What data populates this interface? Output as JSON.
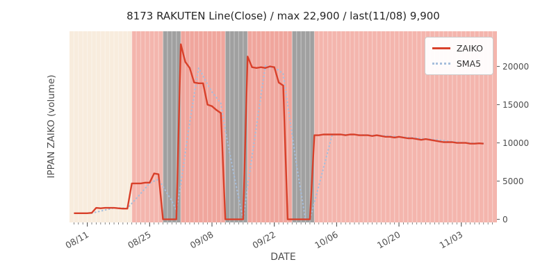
{
  "chart_data": {
    "type": "line",
    "title": "8173 RAKUTEN Line(Close) / max 22,900 / last(11/08) 9,900",
    "xlabel": "DATE",
    "ylabel": "IPPAN ZAIKO (volume)",
    "x_tick_labels": [
      "08/11",
      "08/25",
      "09/08",
      "09/22",
      "10/06",
      "10/20",
      "11/03"
    ],
    "y_ticks": [
      0,
      5000,
      10000,
      15000,
      20000
    ],
    "xlim": [
      "08/07",
      "11/11"
    ],
    "ylim": [
      -400,
      24600
    ],
    "legend_position": "upper right",
    "max_value": 22900,
    "last": {
      "date": "11/08",
      "value": 9900
    },
    "series": [
      {
        "name": "ZAIKO",
        "style": "solid",
        "color": "#d8402a",
        "points": [
          [
            "08/08",
            800
          ],
          [
            "08/09",
            800
          ],
          [
            "08/10",
            800
          ],
          [
            "08/11",
            800
          ],
          [
            "08/12",
            850
          ],
          [
            "08/13",
            1500
          ],
          [
            "08/14",
            1450
          ],
          [
            "08/15",
            1500
          ],
          [
            "08/16",
            1500
          ],
          [
            "08/17",
            1500
          ],
          [
            "08/18",
            1450
          ],
          [
            "08/19",
            1400
          ],
          [
            "08/20",
            1400
          ],
          [
            "08/21",
            4700
          ],
          [
            "08/22",
            4700
          ],
          [
            "08/23",
            4700
          ],
          [
            "08/24",
            4800
          ],
          [
            "08/25",
            4800
          ],
          [
            "08/26",
            6000
          ],
          [
            "08/27",
            5900
          ],
          [
            "08/28",
            0
          ],
          [
            "08/29",
            0
          ],
          [
            "08/30",
            0
          ],
          [
            "08/31",
            0
          ],
          [
            "09/01",
            22900
          ],
          [
            "09/02",
            20600
          ],
          [
            "09/03",
            19800
          ],
          [
            "09/04",
            17900
          ],
          [
            "09/05",
            17800
          ],
          [
            "09/06",
            17800
          ],
          [
            "09/07",
            15000
          ],
          [
            "09/08",
            14800
          ],
          [
            "09/09",
            14300
          ],
          [
            "09/10",
            13900
          ],
          [
            "09/11",
            0
          ],
          [
            "09/12",
            0
          ],
          [
            "09/13",
            0
          ],
          [
            "09/14",
            0
          ],
          [
            "09/15",
            0
          ],
          [
            "09/16",
            21300
          ],
          [
            "09/17",
            19900
          ],
          [
            "09/18",
            19800
          ],
          [
            "09/19",
            19900
          ],
          [
            "09/20",
            19800
          ],
          [
            "09/21",
            20000
          ],
          [
            "09/22",
            19900
          ],
          [
            "09/23",
            17900
          ],
          [
            "09/24",
            17500
          ],
          [
            "09/25",
            0
          ],
          [
            "09/26",
            0
          ],
          [
            "09/27",
            0
          ],
          [
            "09/28",
            0
          ],
          [
            "09/29",
            0
          ],
          [
            "09/30",
            0
          ],
          [
            "10/01",
            11000
          ],
          [
            "10/02",
            11000
          ],
          [
            "10/03",
            11100
          ],
          [
            "10/04",
            11100
          ],
          [
            "10/05",
            11100
          ],
          [
            "10/06",
            11100
          ],
          [
            "10/07",
            11100
          ],
          [
            "10/08",
            11000
          ],
          [
            "10/09",
            11100
          ],
          [
            "10/10",
            11100
          ],
          [
            "10/11",
            11000
          ],
          [
            "10/12",
            11000
          ],
          [
            "10/13",
            11000
          ],
          [
            "10/14",
            10900
          ],
          [
            "10/15",
            11000
          ],
          [
            "10/16",
            10900
          ],
          [
            "10/17",
            10800
          ],
          [
            "10/18",
            10800
          ],
          [
            "10/19",
            10700
          ],
          [
            "10/20",
            10800
          ],
          [
            "10/21",
            10700
          ],
          [
            "10/22",
            10600
          ],
          [
            "10/23",
            10600
          ],
          [
            "10/24",
            10500
          ],
          [
            "10/25",
            10400
          ],
          [
            "10/26",
            10500
          ],
          [
            "10/27",
            10400
          ],
          [
            "10/28",
            10300
          ],
          [
            "10/29",
            10200
          ],
          [
            "10/30",
            10100
          ],
          [
            "10/31",
            10100
          ],
          [
            "11/01",
            10100
          ],
          [
            "11/02",
            10000
          ],
          [
            "11/03",
            10000
          ],
          [
            "11/04",
            10000
          ],
          [
            "11/05",
            9900
          ],
          [
            "11/06",
            9900
          ],
          [
            "11/07",
            9950
          ],
          [
            "11/08",
            9900
          ]
        ]
      },
      {
        "name": "SMA5",
        "style": "dotted",
        "color": "#a6bedc",
        "derived": "5-day moving average of ZAIKO",
        "window": 5
      }
    ],
    "bands": [
      {
        "from": "08/07",
        "to": "08/21",
        "color": "#f8ecdd"
      },
      {
        "from": "08/21",
        "to": "08/28",
        "color": "#f4b5ad"
      },
      {
        "from": "08/28",
        "to": "09/01",
        "color": "#a0a0a0"
      },
      {
        "from": "09/01",
        "to": "09/11",
        "color": "#f0a69d"
      },
      {
        "from": "09/11",
        "to": "09/16",
        "color": "#a0a0a0"
      },
      {
        "from": "09/16",
        "to": "09/26",
        "color": "#f0a69d"
      },
      {
        "from": "09/26",
        "to": "10/01",
        "color": "#a0a0a0"
      },
      {
        "from": "10/01",
        "to": "11/11",
        "color": "#f4b5ad"
      }
    ]
  }
}
